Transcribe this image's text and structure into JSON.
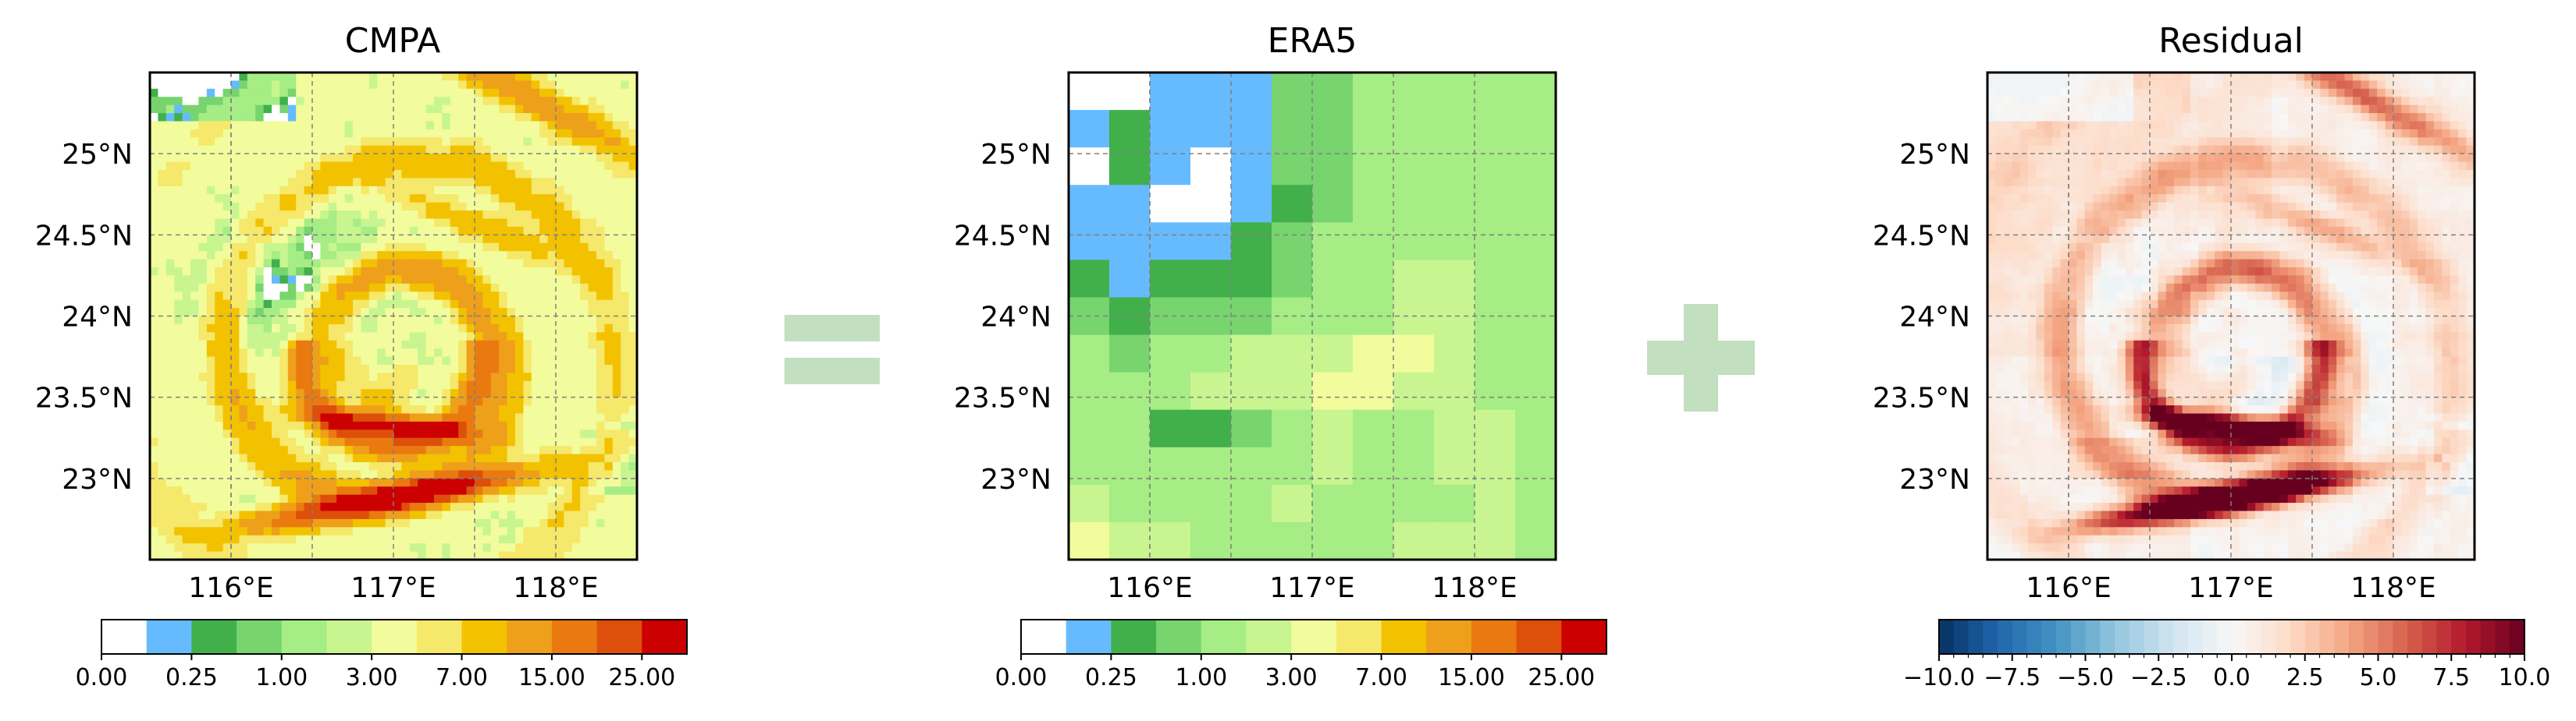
{
  "figure": {
    "equals_symbol": "=",
    "plus_symbol": "+",
    "operator_color": "#c2dfc0"
  },
  "chart_data": [
    {
      "type": "heatmap",
      "title": "CMPA",
      "x_ticks": [
        "116°E",
        "117°E",
        "118°E"
      ],
      "y_ticks": [
        "25°N",
        "24.5°N",
        "24°N",
        "23.5°N",
        "23°N"
      ],
      "xlim": [
        115.5,
        118.5
      ],
      "ylim": [
        22.5,
        25.5
      ],
      "grid": true,
      "grid_resolution_deg": 0.05,
      "colormap": [
        "#ffffff",
        "#66bbff",
        "#41b04a",
        "#77d46f",
        "#a5ed84",
        "#c8f590",
        "#f2fc9c",
        "#f5e86a",
        "#f2c200",
        "#eea01a",
        "#ea7a0f",
        "#de4f0c",
        "#cc0000"
      ],
      "colorbar_ticks": [
        "0.00",
        "0.25",
        "1.00",
        "3.00",
        "7.00",
        "15.00",
        "25.00"
      ],
      "field_description": "Typhoon precipitation with spiral rainbands around a center near 117.0°E, 23.75°N; heavy bands (15–25+) south of the center"
    },
    {
      "type": "heatmap",
      "title": "ERA5",
      "x_ticks": [
        "116°E",
        "117°E",
        "118°E"
      ],
      "y_ticks": [
        "25°N",
        "24.5°N",
        "24°N",
        "23.5°N",
        "23°N"
      ],
      "xlim": [
        115.5,
        118.5
      ],
      "ylim": [
        22.5,
        25.5
      ],
      "grid": true,
      "grid_resolution_deg": 0.25,
      "colormap": [
        "#ffffff",
        "#66bbff",
        "#41b04a",
        "#77d46f",
        "#a5ed84",
        "#c8f590",
        "#f2fc9c",
        "#f5e86a",
        "#f2c200",
        "#eea01a",
        "#ea7a0f",
        "#de4f0c",
        "#cc0000"
      ],
      "colorbar_ticks": [
        "0.00",
        "0.25",
        "1.00",
        "3.00",
        "7.00",
        "15.00",
        "25.00"
      ],
      "class_grid": [
        [
          0,
          0,
          1,
          1,
          1,
          3,
          3,
          4,
          4,
          4,
          4,
          4
        ],
        [
          1,
          2,
          1,
          1,
          1,
          3,
          3,
          4,
          4,
          4,
          4,
          4
        ],
        [
          0,
          2,
          1,
          0,
          1,
          3,
          3,
          4,
          4,
          4,
          4,
          4
        ],
        [
          1,
          1,
          0,
          0,
          1,
          2,
          3,
          4,
          4,
          4,
          4,
          4
        ],
        [
          1,
          1,
          1,
          1,
          2,
          3,
          4,
          4,
          4,
          4,
          4,
          4
        ],
        [
          2,
          1,
          2,
          2,
          2,
          3,
          4,
          4,
          5,
          5,
          4,
          4
        ],
        [
          3,
          2,
          3,
          3,
          3,
          4,
          4,
          4,
          5,
          5,
          4,
          4
        ],
        [
          4,
          3,
          4,
          4,
          5,
          5,
          5,
          6,
          6,
          5,
          4,
          4
        ],
        [
          4,
          4,
          4,
          5,
          5,
          5,
          6,
          6,
          5,
          5,
          4,
          4
        ],
        [
          4,
          4,
          2,
          2,
          3,
          4,
          5,
          4,
          4,
          5,
          5,
          4
        ],
        [
          4,
          4,
          4,
          4,
          4,
          4,
          5,
          4,
          4,
          5,
          5,
          4
        ],
        [
          5,
          4,
          4,
          4,
          4,
          5,
          4,
          4,
          4,
          4,
          5,
          4
        ],
        [
          6,
          5,
          5,
          4,
          4,
          4,
          4,
          4,
          5,
          5,
          5,
          4
        ]
      ]
    },
    {
      "type": "heatmap",
      "title": "Residual",
      "x_ticks": [
        "116°E",
        "117°E",
        "118°E"
      ],
      "y_ticks": [
        "25°N",
        "24.5°N",
        "24°N",
        "23.5°N",
        "23°N"
      ],
      "xlim": [
        115.5,
        118.5
      ],
      "ylim": [
        22.5,
        25.5
      ],
      "grid": true,
      "grid_resolution_deg": 0.05,
      "colormap": [
        "#053061",
        "#2166ac",
        "#4393c3",
        "#92c5de",
        "#d1e5f0",
        "#f7f7f7",
        "#fddbc7",
        "#f4a582",
        "#d6604d",
        "#b2182b",
        "#67001f"
      ],
      "vlim": [
        -10,
        10
      ],
      "colorbar_ticks": [
        "−10.0",
        "−7.5",
        "−5.0",
        "−2.5",
        "0.0",
        "2.5",
        "5.0",
        "7.5",
        "10.0"
      ],
      "field_description": "CMPA minus ERA5: strong positive residual along rainbands, negative values over large-scale areas"
    }
  ]
}
